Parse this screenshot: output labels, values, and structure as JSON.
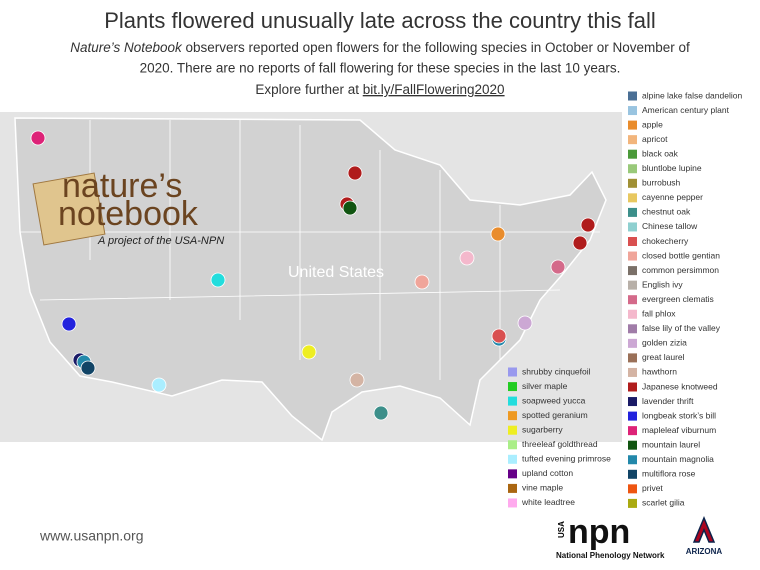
{
  "title": "Plants flowered unusually late across the country this fall",
  "subtitle_lead": "Nature’s Notebook",
  "subtitle": [
    " observers reported open flowers for the following species in October or November of",
    "2020. There are no reports of fall flowering for these species in the last 10 years."
  ],
  "explore_text": "Explore further at ",
  "explore_link": "bit.ly/FallFlowering2020",
  "map_label": "United States",
  "logo": {
    "line1": "nature’s",
    "line2": "notebook",
    "tagline": "A project of the USA-NPN"
  },
  "legend": {
    "column1": [
      {
        "name": "shrubby cinquefoil",
        "color": "#9999ee"
      },
      {
        "name": "silver maple",
        "color": "#22cc22"
      },
      {
        "name": "soapweed yucca",
        "color": "#22dddd"
      },
      {
        "name": "spotted geranium",
        "color": "#ee9922"
      },
      {
        "name": "sugarberry",
        "color": "#eeee22"
      },
      {
        "name": "threeleaf goldthread",
        "color": "#aaee88"
      },
      {
        "name": "tufted evening primrose",
        "color": "#aaeeff"
      },
      {
        "name": "upland cotton",
        "color": "#660088"
      },
      {
        "name": "vine maple",
        "color": "#aa6611"
      },
      {
        "name": "white leadtree",
        "color": "#ffaaee"
      }
    ],
    "column2": [
      {
        "name": "alpine lake false dandelion",
        "color": "#4a6f95"
      },
      {
        "name": "American century plant",
        "color": "#99c4e0"
      },
      {
        "name": "apple",
        "color": "#e98c2c"
      },
      {
        "name": "apricot",
        "color": "#f2b57c"
      },
      {
        "name": "black oak",
        "color": "#4b9a3a"
      },
      {
        "name": "bluntlobe lupine",
        "color": "#99c97a"
      },
      {
        "name": "burrobush",
        "color": "#a09035"
      },
      {
        "name": "cayenne pepper",
        "color": "#e8c860"
      },
      {
        "name": "chestnut oak",
        "color": "#3c8f8a"
      },
      {
        "name": "Chinese tallow",
        "color": "#8fd0d0"
      },
      {
        "name": "chokecherry",
        "color": "#d95050"
      },
      {
        "name": "closed bottle gentian",
        "color": "#f0a59a"
      },
      {
        "name": "common persimmon",
        "color": "#7a7068"
      },
      {
        "name": "English ivy",
        "color": "#b8b0a8"
      },
      {
        "name": "evergreen clematis",
        "color": "#d46a8a"
      },
      {
        "name": "fall phlox",
        "color": "#f4b8cc"
      },
      {
        "name": "false lily of the valley",
        "color": "#a07ca8"
      },
      {
        "name": "golden zizia",
        "color": "#cca8d4"
      },
      {
        "name": "great laurel",
        "color": "#9a7058"
      },
      {
        "name": "hawthorn",
        "color": "#d4b4a4"
      },
      {
        "name": "Japanese knotweed",
        "color": "#b01c1c"
      },
      {
        "name": "lavender thrift",
        "color": "#1a1a66"
      },
      {
        "name": "longbeak stork’s bill",
        "color": "#2222dd"
      },
      {
        "name": "mapleleaf viburnum",
        "color": "#dd2277"
      },
      {
        "name": "mountain laurel",
        "color": "#115511"
      },
      {
        "name": "mountain magnolia",
        "color": "#2288aa"
      },
      {
        "name": "multiflora rose",
        "color": "#114466"
      },
      {
        "name": "privet",
        "color": "#ee5511"
      },
      {
        "name": "scarlet gilia",
        "color": "#aaaa11"
      }
    ]
  },
  "footer": {
    "website": "www.usanpn.org",
    "npn_usa": "USA",
    "npn_word": "npn",
    "npn_name": "National Phenology Network",
    "arizona": "ARIZONA"
  }
}
